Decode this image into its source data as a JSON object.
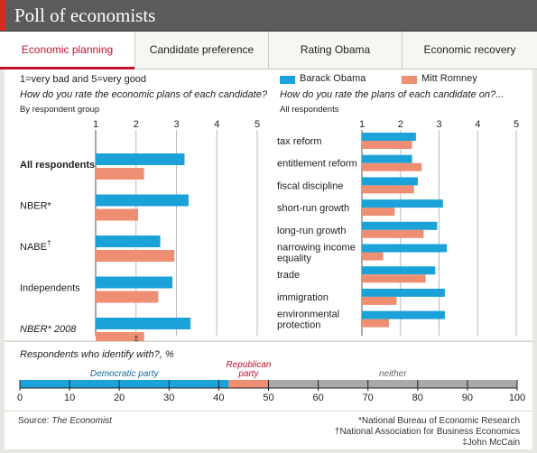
{
  "title": "Poll of economists",
  "tabs": [
    {
      "label": "Economic planning",
      "active": true
    },
    {
      "label": "Candidate preference",
      "active": false
    },
    {
      "label": "Rating Obama",
      "active": false
    },
    {
      "label": "Economic recovery",
      "active": false
    }
  ],
  "colors": {
    "obama": "#1aa2d9",
    "romney": "#ee8f74",
    "democratic": "#1aa2d9",
    "republican": "#ee8f74",
    "neither": "#a9a9a9",
    "accent": "#c8102e"
  },
  "scale_note": "1=very bad and 5=very good",
  "legend": [
    {
      "name": "Barack Obama",
      "color": "#1aa2d9"
    },
    {
      "name": "Mitt Romney",
      "color": "#ee8f74"
    }
  ],
  "left_question": "How do you rate the economic plans of each candidate?",
  "left_sub": "By respondent group",
  "right_question": "How do you rate the plans of each candidate on?...",
  "right_sub": "All respondents",
  "bottom_question": "Respondents who identify with?, %",
  "source_label": "Source:",
  "source_name": "The Economist",
  "footnotes": [
    "*National Bureau of Economic Research",
    "†National Association for Business Economics",
    "‡John McCain"
  ],
  "chart_data": [
    {
      "type": "bar",
      "orientation": "horizontal",
      "xlim": [
        1,
        5
      ],
      "ticks": [
        1,
        2,
        3,
        4,
        5
      ],
      "grid": true,
      "categories": [
        {
          "label": "All respondents",
          "bold": true,
          "italic": false,
          "sup": ""
        },
        {
          "label": "NBER*",
          "bold": false,
          "italic": false,
          "sup": ""
        },
        {
          "label": "NABE",
          "bold": false,
          "italic": false,
          "sup": "†"
        },
        {
          "label": "Independents",
          "bold": false,
          "italic": false,
          "sup": ""
        },
        {
          "label": "NBER* 2008",
          "bold": false,
          "italic": true,
          "sup": ""
        }
      ],
      "series": [
        {
          "name": "Barack Obama",
          "values": [
            3.2,
            3.3,
            2.6,
            2.9,
            3.35
          ]
        },
        {
          "name": "Mitt Romney",
          "values": [
            2.2,
            2.05,
            2.95,
            2.55,
            2.2
          ]
        }
      ],
      "annotations": [
        {
          "category": "NBER* 2008",
          "series": "Mitt Romney",
          "text": "‡"
        }
      ]
    },
    {
      "type": "bar",
      "orientation": "horizontal",
      "xlim": [
        1,
        5
      ],
      "ticks": [
        1,
        2,
        3,
        4,
        5
      ],
      "grid": true,
      "categories": [
        "tax reform",
        "entitlement reform",
        "fiscal discipline",
        "short-run growth",
        "long-run growth",
        "narrowing income equality",
        "trade",
        "immigration",
        "environmental protection"
      ],
      "series": [
        {
          "name": "Barack Obama",
          "values": [
            2.4,
            2.3,
            2.45,
            3.1,
            2.95,
            3.2,
            2.9,
            3.15,
            3.15
          ]
        },
        {
          "name": "Mitt Romney",
          "values": [
            2.3,
            2.55,
            2.35,
            1.85,
            2.6,
            1.55,
            2.65,
            1.9,
            1.7
          ]
        }
      ]
    },
    {
      "type": "bar",
      "orientation": "horizontal",
      "stacked": true,
      "xlim": [
        0,
        100
      ],
      "ticks": [
        0,
        10,
        20,
        30,
        40,
        50,
        60,
        70,
        80,
        90,
        100
      ],
      "segments": [
        {
          "name": "Democratic party",
          "value": 42
        },
        {
          "name": "Republican party",
          "value": 8
        },
        {
          "name": "neither",
          "value": 50
        }
      ]
    }
  ]
}
